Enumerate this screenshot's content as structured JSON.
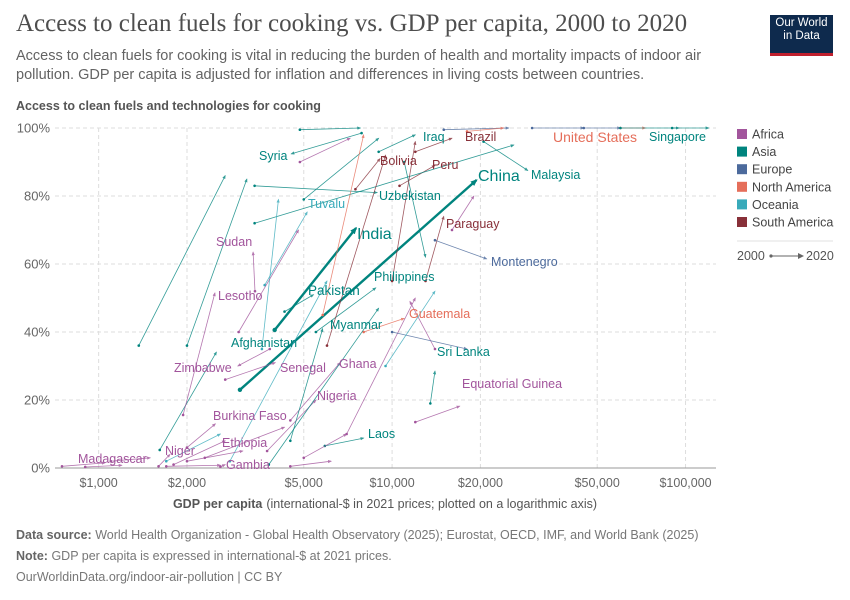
{
  "header": {
    "title": "Access to clean fuels for cooking vs. GDP per capita, 2000 to 2020",
    "subtitle": "Access to clean fuels for cooking is vital in reducing the burden of health and mortality impacts of indoor air pollution. GDP per capita is adjusted for inflation and differences in living costs between countries.",
    "logo_line1": "Our World",
    "logo_line2": "in Data"
  },
  "footer": {
    "source_label": "Data source:",
    "source_text": "World Health Organization - Global Health Observatory (2025); Eurostat, OECD, IMF, and World Bank (2025)",
    "note_label": "Note:",
    "note_text": "GDP per capita is expressed in international-$ at 2021 prices.",
    "url": "OurWorldinData.org/indoor-air-pollution | CC BY"
  },
  "chart_data": {
    "type": "scatter",
    "subtype": "arrow-connected-scatter",
    "ylabel": "Access to clean fuels and technologies for cooking",
    "xlabel_bold": "GDP per capita",
    "xlabel_rest": "(international-$ in 2021 prices; plotted on a logarithmic axis)",
    "x_scale": "log",
    "xlim": [
      710,
      127000
    ],
    "ylim": [
      0,
      100
    ],
    "x_ticks": [
      1000,
      2000,
      5000,
      10000,
      20000,
      50000,
      100000
    ],
    "x_tick_labels": [
      "$1,000",
      "$2,000",
      "$5,000",
      "$10,000",
      "$20,000",
      "$50,000",
      "$100,000"
    ],
    "y_ticks": [
      0,
      20,
      40,
      60,
      80,
      100
    ],
    "y_tick_labels": [
      "0%",
      "20%",
      "40%",
      "60%",
      "80%",
      "100%"
    ],
    "grid": true,
    "legend_position": "right",
    "legend": [
      {
        "name": "Africa",
        "color": "#a2559c"
      },
      {
        "name": "Asia",
        "color": "#00847e"
      },
      {
        "name": "Europe",
        "color": "#4c6a9c"
      },
      {
        "name": "North America",
        "color": "#e56e5a"
      },
      {
        "name": "Oceania",
        "color": "#38aaba"
      },
      {
        "name": "South America",
        "color": "#883039"
      }
    ],
    "time_legend": {
      "start": "2000",
      "end": "2020"
    },
    "series": [
      {
        "name": "India",
        "continent": "Asia",
        "x0": 3980,
        "y0": 40.6,
        "x1": 7540,
        "y1": 70.6
      },
      {
        "name": "China",
        "continent": "Asia",
        "x0": 3030,
        "y0": 23,
        "x1": 19400,
        "y1": 84.7
      },
      {
        "name": "Pakistan",
        "continent": "Asia",
        "x0": 4300,
        "y0": 46,
        "x1": 5400,
        "y1": 51
      },
      {
        "name": "Afghanistan",
        "continent": "Asia",
        "x0": 1615,
        "y0": 5.3,
        "x1": 2520,
        "y1": 34.1
      },
      {
        "name": "Syria",
        "continent": "Asia",
        "x0": 7870,
        "y0": 98.5,
        "x1": 4530,
        "y1": 92.4
      },
      {
        "name": "Tuvalu",
        "continent": "Oceania",
        "x0": 3680,
        "y0": 53.8,
        "x1": 5140,
        "y1": 75.3
      },
      {
        "name": "Sudan",
        "continent": "Africa",
        "x0": 3410,
        "y0": 52,
        "x1": 3360,
        "y1": 63.5
      },
      {
        "name": "Lesotho",
        "continent": "Africa",
        "x0": 1940,
        "y0": 15.6,
        "x1": 2490,
        "y1": 51.5
      },
      {
        "name": "Zimbabwe",
        "continent": "Africa",
        "x0": 3830,
        "y0": 35,
        "x1": 2980,
        "y1": 30
      },
      {
        "name": "Senegal",
        "continent": "Africa",
        "x0": 2700,
        "y0": 26,
        "x1": 4000,
        "y1": 31
      },
      {
        "name": "Ghana",
        "continent": "Africa",
        "x0": 4500,
        "y0": 14,
        "x1": 6650,
        "y1": 31
      },
      {
        "name": "Nigeria",
        "continent": "Africa",
        "x0": 3750,
        "y0": 5,
        "x1": 5500,
        "y1": 20
      },
      {
        "name": "Burkina Faso",
        "continent": "Africa",
        "x0": 2000,
        "y0": 6,
        "x1": 2500,
        "y1": 13
      },
      {
        "name": "Ethiopia",
        "continent": "Africa",
        "x0": 1800,
        "y0": 1,
        "x1": 2700,
        "y1": 8
      },
      {
        "name": "Niger",
        "continent": "Africa",
        "x0": 1600,
        "y0": 0.5,
        "x1": 1750,
        "y1": 4
      },
      {
        "name": "Madagascar",
        "continent": "Africa",
        "x0": 750,
        "y0": 0.5,
        "x1": 1050,
        "y1": 1.5
      },
      {
        "name": "Gambia",
        "continent": "Africa",
        "x0": 2600,
        "y0": 0.4,
        "x1": 2700,
        "y1": 1
      },
      {
        "name": "Laos",
        "continent": "Asia",
        "x0": 5900,
        "y0": 6.5,
        "x1": 8000,
        "y1": 8.8
      },
      {
        "name": "Myanmar",
        "continent": "Asia",
        "x0": 4500,
        "y0": 8,
        "x1": 5800,
        "y1": 41
      },
      {
        "name": "Philippines",
        "continent": "Asia",
        "x0": 5500,
        "y0": 40,
        "x1": 8800,
        "y1": 53
      },
      {
        "name": "Uzbekistan",
        "continent": "Asia",
        "x0": 3400,
        "y0": 83,
        "x1": 8900,
        "y1": 81
      },
      {
        "name": "Iraq",
        "continent": "Asia",
        "x0": 9000,
        "y0": 93,
        "x1": 12000,
        "y1": 98
      },
      {
        "name": "Brazil",
        "continent": "South America",
        "x0": 12000,
        "y0": 93,
        "x1": 16000,
        "y1": 97
      },
      {
        "name": "Bolivia",
        "continent": "South America",
        "x0": 7500,
        "y0": 82,
        "x1": 9100,
        "y1": 91
      },
      {
        "name": "Peru",
        "continent": "South America",
        "x0": 10600,
        "y0": 83,
        "x1": 14000,
        "y1": 89
      },
      {
        "name": "Paraguay",
        "continent": "South America",
        "x0": 13000,
        "y0": 55,
        "x1": 15000,
        "y1": 74
      },
      {
        "name": "Montenegro",
        "continent": "Europe",
        "x0": 14000,
        "y0": 67,
        "x1": 21000,
        "y1": 61.5
      },
      {
        "name": "Malaysia",
        "continent": "Asia",
        "x0": 20500,
        "y0": 96,
        "x1": 29000,
        "y1": 87.5
      },
      {
        "name": "Guatemala",
        "continent": "North America",
        "x0": 8000,
        "y0": 40,
        "x1": 11000,
        "y1": 44
      },
      {
        "name": "Sri Lanka",
        "continent": "Asia",
        "x0": 13500,
        "y0": 19,
        "x1": 14000,
        "y1": 28.5
      },
      {
        "name": "Equatorial Guinea",
        "continent": "Africa",
        "x0": 12000,
        "y0": 13.5,
        "x1": 17000,
        "y1": 18.2
      },
      {
        "name": "United States",
        "continent": "North America",
        "x0": 60000,
        "y0": 100,
        "x1": 73000,
        "y1": 100
      },
      {
        "name": "Singapore",
        "continent": "Asia",
        "x0": 90000,
        "y0": 100,
        "x1": 120000,
        "y1": 100
      },
      {
        "continent": "Asia",
        "x0": 4850,
        "y0": 99.5,
        "x1": 7800,
        "y1": 100
      },
      {
        "continent": "Europe",
        "x0": 15000,
        "y0": 99.5,
        "x1": 25000,
        "y1": 100
      },
      {
        "continent": "Europe",
        "x0": 30000,
        "y0": 100,
        "x1": 45000,
        "y1": 100
      },
      {
        "continent": "Europe",
        "x0": 45000,
        "y0": 100,
        "x1": 60000,
        "y1": 100
      },
      {
        "continent": "Asia",
        "x0": 60000,
        "y0": 100,
        "x1": 95000,
        "y1": 100
      },
      {
        "continent": "North America",
        "x0": 18000,
        "y0": 99,
        "x1": 24000,
        "y1": 100
      },
      {
        "continent": "Asia",
        "x0": 5000,
        "y0": 79,
        "x1": 9000,
        "y1": 97
      },
      {
        "continent": "Africa",
        "x0": 4850,
        "y0": 90,
        "x1": 7200,
        "y1": 97
      },
      {
        "continent": "Asia",
        "x0": 3400,
        "y0": 72,
        "x1": 26000,
        "y1": 95
      },
      {
        "continent": "Asia",
        "x0": 2000,
        "y0": 36,
        "x1": 3200,
        "y1": 85
      },
      {
        "continent": "Oceania",
        "x0": 3600,
        "y0": 35,
        "x1": 4100,
        "y1": 79
      },
      {
        "continent": "Asia",
        "x0": 1370,
        "y0": 36,
        "x1": 2700,
        "y1": 86
      },
      {
        "continent": "Africa",
        "x0": 3000,
        "y0": 40,
        "x1": 4800,
        "y1": 70
      },
      {
        "continent": "North America",
        "x0": 5800,
        "y0": 45,
        "x1": 8000,
        "y1": 98
      },
      {
        "continent": "South America",
        "x0": 6000,
        "y0": 36,
        "x1": 9500,
        "y1": 92
      },
      {
        "continent": "Africa",
        "x0": 7000,
        "y0": 10,
        "x1": 12000,
        "y1": 50
      },
      {
        "continent": "Oceania",
        "x0": 2800,
        "y0": 2,
        "x1": 6000,
        "y1": 55
      },
      {
        "continent": "Asia",
        "x0": 3800,
        "y0": 1,
        "x1": 9000,
        "y1": 47
      },
      {
        "continent": "Africa",
        "x0": 2300,
        "y0": 3,
        "x1": 4300,
        "y1": 12
      },
      {
        "continent": "Africa",
        "x0": 1100,
        "y0": 2,
        "x1": 1500,
        "y1": 3
      },
      {
        "continent": "Africa",
        "x0": 900,
        "y0": 0.3,
        "x1": 1200,
        "y1": 0.8
      },
      {
        "continent": "Africa",
        "x0": 1700,
        "y0": 0.5,
        "x1": 2600,
        "y1": 0.8
      },
      {
        "continent": "Africa",
        "x0": 2000,
        "y0": 2,
        "x1": 3100,
        "y1": 5
      },
      {
        "continent": "Oceania",
        "x0": 1700,
        "y0": 2,
        "x1": 2600,
        "y1": 10
      },
      {
        "continent": "Africa",
        "x0": 4500,
        "y0": 0.5,
        "x1": 6200,
        "y1": 2
      },
      {
        "continent": "Africa",
        "x0": 5000,
        "y0": 3,
        "x1": 7000,
        "y1": 10
      },
      {
        "continent": "Africa",
        "x0": 16000,
        "y0": 70,
        "x1": 19000,
        "y1": 80
      },
      {
        "continent": "Africa",
        "x0": 14000,
        "y0": 35,
        "x1": 11500,
        "y1": 49
      },
      {
        "continent": "Europe",
        "x0": 10000,
        "y0": 40,
        "x1": 18000,
        "y1": 35
      },
      {
        "continent": "Asia",
        "x0": 11000,
        "y0": 90,
        "x1": 13000,
        "y1": 62
      },
      {
        "continent": "Oceania",
        "x0": 9500,
        "y0": 30,
        "x1": 14000,
        "y1": 52
      },
      {
        "continent": "South America",
        "x0": 10000,
        "y0": 55,
        "x1": 12000,
        "y1": 96
      }
    ]
  }
}
